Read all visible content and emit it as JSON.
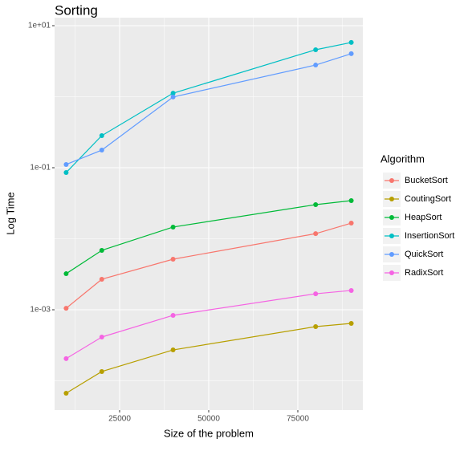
{
  "chart_data": {
    "type": "line",
    "title": "Sorting",
    "x_label": "Size of the problem",
    "y_label": "Log Time",
    "legend_title": "Algorithm",
    "legend_position": "right",
    "log_y": true,
    "grid": true,
    "x": [
      10000,
      20000,
      40000,
      80000,
      90000
    ],
    "xlim": [
      6757,
      93243
    ],
    "xticks": [
      25000,
      50000,
      75000
    ],
    "ylim": [
      3.87e-05,
      12.97
    ],
    "yticks": [
      {
        "value": 10,
        "label": "1e+01"
      },
      {
        "value": 0.1,
        "label": "1e-01"
      },
      {
        "value": 0.001,
        "label": "1e-03"
      }
    ],
    "series": [
      {
        "name": "BucketSort",
        "color": "#F8766D",
        "values": [
          0.00105,
          0.00269,
          0.00515,
          0.0118,
          0.0166
        ]
      },
      {
        "name": "CoutingSort",
        "color": "#B79F00",
        "values": [
          6.68e-05,
          0.000135,
          0.000272,
          0.000579,
          0.000643
        ]
      },
      {
        "name": "HeapSort",
        "color": "#00BA38",
        "values": [
          0.00322,
          0.00686,
          0.0146,
          0.0302,
          0.0344
        ]
      },
      {
        "name": "InsertionSort",
        "color": "#00BFC4",
        "values": [
          0.0855,
          0.283,
          1.12,
          4.58,
          5.8
        ]
      },
      {
        "name": "QuickSort",
        "color": "#619CFF",
        "values": [
          0.111,
          0.177,
          0.99,
          2.79,
          4.03
        ]
      },
      {
        "name": "RadixSort",
        "color": "#F564E3",
        "values": [
          0.000205,
          0.000413,
          0.000834,
          0.00168,
          0.00187
        ]
      }
    ]
  }
}
